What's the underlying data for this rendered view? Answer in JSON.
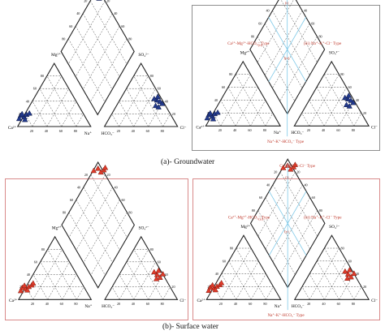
{
  "colors": {
    "frame_a": "#8e8e8e",
    "frame_b": "#d98a8a",
    "groundwater_fill": "#223a8e",
    "surface_fill": "#e03b2a",
    "surface_stroke": "#7a1a10",
    "type_text": "#c0392b",
    "type_lines": "#7fc9e8"
  },
  "captions": {
    "groundwater": "(a)- Groundwater",
    "surface": "(b)- Surface water"
  },
  "axes": {
    "ca": "Ca²⁺",
    "mg": "Mg²⁺",
    "na": "Na⁺",
    "hco3": "HCO₃⁻",
    "so4": "SO₄²⁻",
    "cl": "Cl⁻",
    "ticks": [
      "20",
      "40",
      "60",
      "80"
    ]
  },
  "water_types": {
    "top": "Ca²⁺-Mg²⁺-Cl⁻ Type",
    "left": "Ca²⁺-Mg²⁺-HCO₃⁻ Type",
    "right": "(iii) Na⁺-K⁺-Cl⁻ Type",
    "bottom": "Na⁺-K⁺-HCO₃⁻ Type",
    "zones": [
      "(i)",
      "(ii)",
      "(iv)",
      "(v)"
    ]
  }
}
